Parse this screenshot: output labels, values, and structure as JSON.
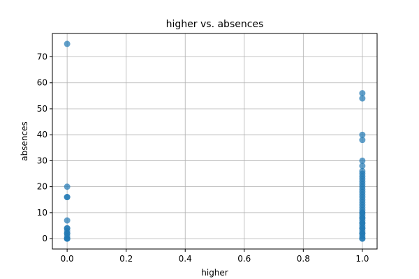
{
  "chart_data": {
    "type": "scatter",
    "title": "higher vs. absences",
    "xlabel": "higher",
    "ylabel": "absences",
    "xlim": [
      -0.05,
      1.05
    ],
    "ylim": [
      -4,
      79
    ],
    "xticks": [
      0.0,
      0.2,
      0.4,
      0.6,
      0.8,
      1.0
    ],
    "xtick_labels": [
      "0.0",
      "0.2",
      "0.4",
      "0.6",
      "0.8",
      "1.0"
    ],
    "yticks": [
      0,
      10,
      20,
      30,
      40,
      50,
      60,
      70
    ],
    "ytick_labels": [
      "0",
      "10",
      "20",
      "30",
      "40",
      "50",
      "60",
      "70"
    ],
    "grid": true,
    "color": "#1f77b4",
    "series": [
      {
        "x": [
          0,
          0,
          0,
          0,
          0,
          0,
          0,
          0,
          0,
          0,
          0,
          0,
          0,
          0,
          1,
          1,
          1,
          1,
          1,
          1,
          1,
          1,
          1,
          1,
          1,
          1,
          1,
          1,
          1,
          1,
          1,
          1,
          1,
          1,
          1,
          1,
          1,
          1,
          1,
          1,
          1,
          1,
          1,
          1,
          1,
          1,
          1,
          1,
          1,
          1,
          1,
          1,
          1
        ],
        "y": [
          75,
          20,
          16,
          16,
          7,
          4,
          3,
          2,
          1,
          0,
          0,
          2,
          4,
          0,
          56,
          54,
          40,
          38,
          30,
          28,
          26,
          25,
          24,
          23,
          22,
          21,
          20,
          19,
          18,
          17,
          16,
          15,
          14,
          13,
          12,
          11,
          10,
          9,
          8,
          7,
          6,
          5,
          4,
          3,
          2,
          1,
          0,
          0,
          2,
          4,
          6,
          8,
          10
        ]
      }
    ]
  }
}
